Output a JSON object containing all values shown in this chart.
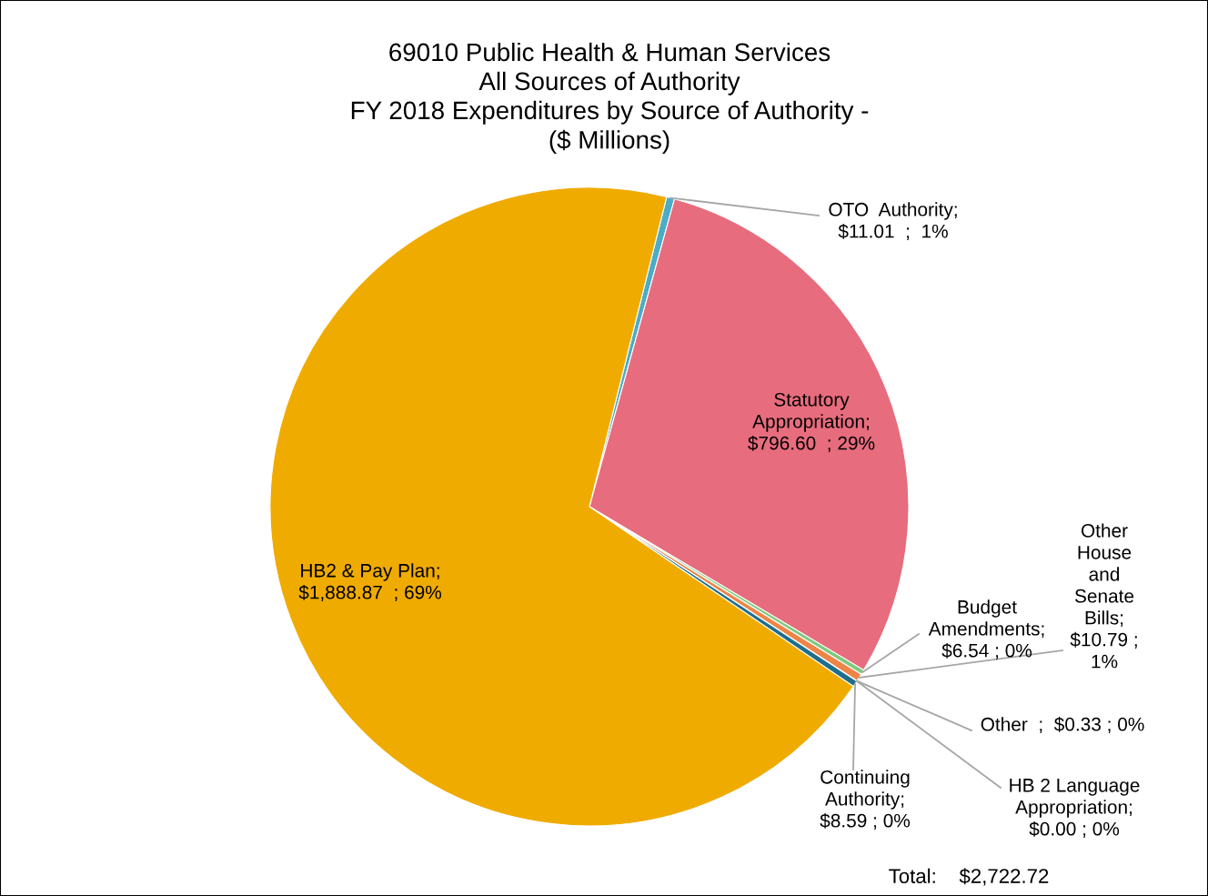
{
  "chart_data": {
    "type": "pie",
    "title": "69010 Public Health & Human Services\nAll Sources of Authority\nFY 2018 Expenditures by Source of Authority -\n($ Millions)",
    "categories": [
      "OTO  Authority",
      "Statutory\nAppropriation",
      "Budget\nAmendments",
      "Other\nHouse\nand\nSenate\nBills",
      "Other",
      "HB 2 Language\nAppropriation",
      "Continuing\nAuthority",
      "HB2 & Pay Plan"
    ],
    "values": [
      11.01,
      796.6,
      6.54,
      10.79,
      0.33,
      0.0,
      8.59,
      1888.87
    ],
    "colors": [
      "#4bacc6",
      "#e76c7d",
      "#7fc97f",
      "#ee8548",
      "#8064a2",
      "#3d7fa6",
      "#1f6e8c",
      "#f0ab00"
    ],
    "value_labels": [
      ";\n$11.01  ;  1%",
      ";\n$796.60  ; 29%",
      ";\n$6.54 ; 0%",
      ";\n$10.79 ;\n1%",
      "  ;  $0.33 ; 0%",
      ";\n$0.00 ; 0%",
      ";\n$8.59 ; 0%",
      ";\n$1,888.87  ; 69%"
    ],
    "annotations": [
      "Total:    $2,722.72"
    ],
    "legend": false
  }
}
